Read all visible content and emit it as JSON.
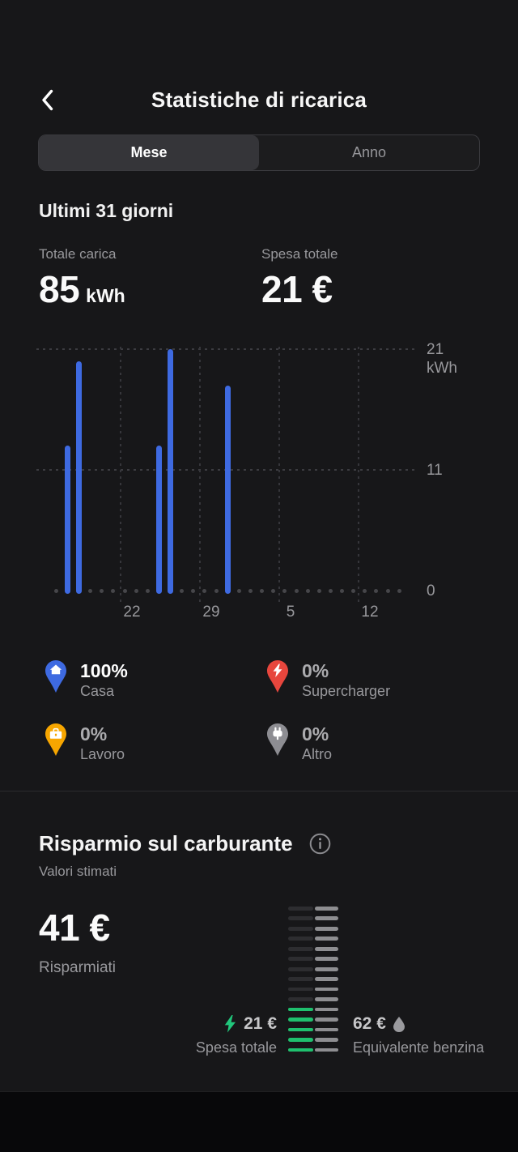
{
  "header": {
    "title": "Statistiche di ricarica"
  },
  "tabs": {
    "month_label": "Mese",
    "year_label": "Anno",
    "selected": "Mese"
  },
  "period_title": "Ultimi 31 giorni",
  "summary": {
    "charge": {
      "label": "Totale carica",
      "value": "85",
      "unit": "kWh"
    },
    "cost": {
      "label": "Spesa totale",
      "value": "21 €"
    }
  },
  "chart_data": {
    "type": "bar",
    "title": "Energia di ricarica giornaliera ultimi 31 giorni",
    "unit": "kWh",
    "days": 31,
    "values": [
      0,
      13,
      20,
      0,
      0,
      0,
      0,
      0,
      0,
      13,
      21,
      0,
      0,
      0,
      0,
      18,
      0,
      0,
      0,
      0,
      0,
      0,
      0,
      0,
      0,
      0,
      0,
      0,
      0,
      0,
      0
    ],
    "x_ticks": [
      {
        "label": "22",
        "index": 6
      },
      {
        "label": "29",
        "index": 13
      },
      {
        "label": "5",
        "index": 20
      },
      {
        "label": "12",
        "index": 27
      }
    ],
    "y_ticks": [
      {
        "label": "21",
        "value": 21,
        "show_unit": true
      },
      {
        "label": "11",
        "value": 11
      },
      {
        "label": "0",
        "value": 0
      }
    ],
    "y_max": 21,
    "bar_color": "#3e6ae1",
    "grid": "dashed"
  },
  "legend": {
    "items": [
      {
        "name": "casa",
        "percent": "100%",
        "label": "Casa",
        "color": "#3e6ae1",
        "active": true
      },
      {
        "name": "supercharger",
        "percent": "0%",
        "label": "Supercharger",
        "color": "#e7463d",
        "active": false
      },
      {
        "name": "lavoro",
        "percent": "0%",
        "label": "Lavoro",
        "color": "#f7a600",
        "active": false
      },
      {
        "name": "altro",
        "percent": "0%",
        "label": "Altro",
        "color": "#8d8d92",
        "active": false
      }
    ]
  },
  "fuel_savings": {
    "title": "Risparmio sul carburante",
    "subtitle": "Valori stimati",
    "saved_value": "41 €",
    "saved_label": "Risparmiati",
    "electric": {
      "value": "21 €",
      "label": "Spesa totale"
    },
    "gasoline": {
      "value": "62 €",
      "label": "Equivalente benzina"
    },
    "gauge": {
      "segments": 15,
      "filled": 5,
      "green": "#1fc06e",
      "dim": "#2d2d30",
      "light": "#8e8e91"
    }
  }
}
